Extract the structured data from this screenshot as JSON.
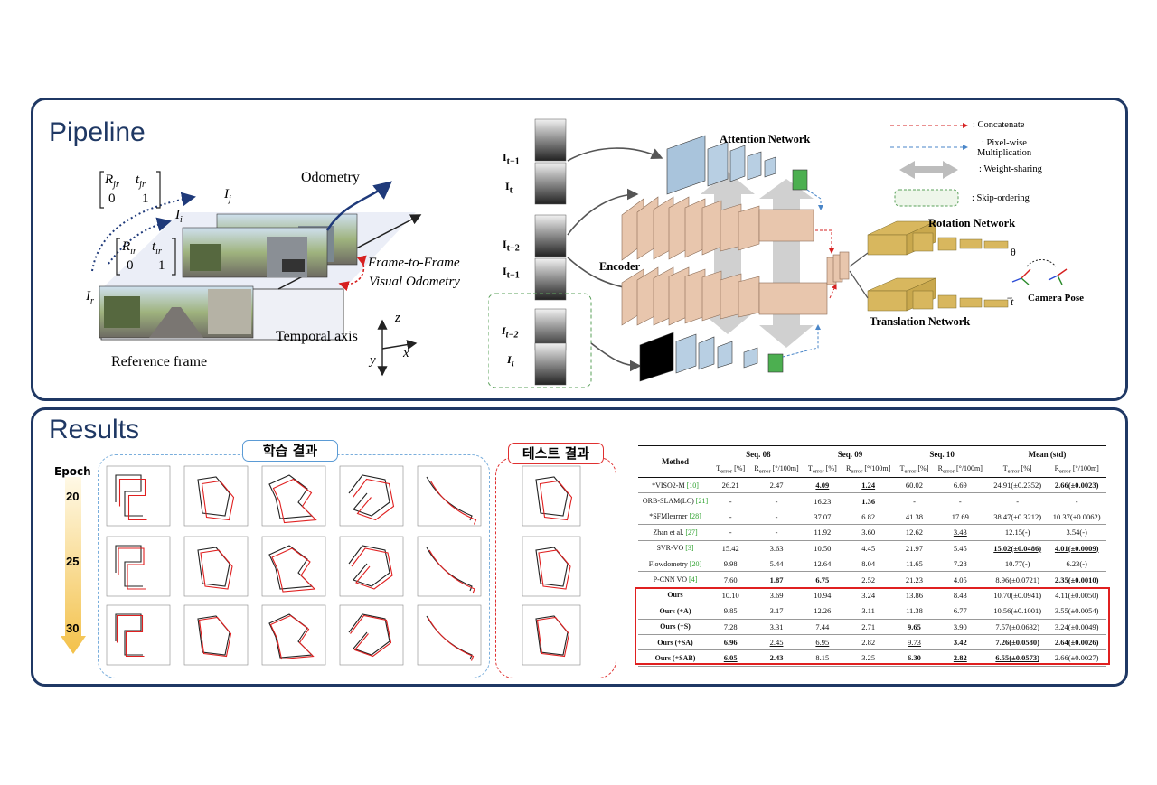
{
  "pipeline": {
    "title": "Pipeline",
    "left_diagram": {
      "matrix_top": {
        "r1c1": "R",
        "r1c1_sub": "jr",
        "r1c2": "t",
        "r1c2_sub": "jr",
        "r2c1": "0",
        "r2c2": "1"
      },
      "matrix_mid": {
        "r1c1": "R",
        "r1c1_sub": "ir",
        "r1c2": "t",
        "r1c2_sub": "ir",
        "r2c1": "0",
        "r2c2": "1"
      },
      "label_Ij": "I",
      "label_Ij_sub": "j",
      "label_Ii": "I",
      "label_Ii_sub": "i",
      "label_Ir": "I",
      "label_Ir_sub": "r",
      "odometry": "Odometry",
      "f2f_line1": "Frame-to-Frame",
      "f2f_line2": "Visual Odometry",
      "temporal_axis": "Temporal axis",
      "reference_frame": "Reference frame",
      "axis_z": "z",
      "axis_x": "x",
      "axis_y": "y"
    },
    "network": {
      "inputs": [
        {
          "label": "I",
          "sub": "t−1"
        },
        {
          "label": "I",
          "sub": "t"
        },
        {
          "label": "I",
          "sub": "t−2"
        },
        {
          "label": "I",
          "sub": "t−1"
        },
        {
          "label": "I",
          "sub": "t−2"
        },
        {
          "label": "I",
          "sub": "t"
        }
      ],
      "attention": "Attention Network",
      "encoder": "Encoder",
      "rotation": "Rotation Network",
      "translation": "Translation Network",
      "theta": "θ",
      "t_vec": "t",
      "camera_pose": "Camera Pose",
      "legend": [
        {
          "key": "concat",
          "label": ": Concatenate"
        },
        {
          "key": "pixel",
          "label": ": Pixel-wise",
          "label2": "Multiplication"
        },
        {
          "key": "weight",
          "label": ": Weight-sharing"
        },
        {
          "key": "skip",
          "label": ": Skip-ordering"
        }
      ]
    }
  },
  "results": {
    "title": "Results",
    "epoch_label": "Epoch",
    "epochs": [
      "20",
      "25",
      "30"
    ],
    "train_label": "학습 결과",
    "test_label": "테스트 결과",
    "table": {
      "method_header": "Method",
      "groups": [
        "Seq. 08",
        "Seq. 09",
        "Seq. 10",
        "Mean (std)"
      ],
      "terr": "T",
      "terr_sub": "error",
      "terr_unit": " [%]",
      "rerr": "R",
      "rerr_sub": "error",
      "rerr_unit": " [°/100m]",
      "rows": [
        {
          "method": "*VISO2-M",
          "ref": "[10]",
          "cells": [
            "26.21",
            "2.47",
            "4.09",
            "1.24",
            "60.02",
            "6.69",
            "24.91(±0.2352)",
            "2.66(±0.0023)"
          ]
        },
        {
          "method": "ORB-SLAM(LC)",
          "ref": "[21]",
          "cells": [
            "-",
            "-",
            "16.23",
            "1.36",
            "-",
            "-",
            "-",
            "-"
          ]
        },
        {
          "method": "*SFMlearner",
          "ref": "[28]",
          "cells": [
            "-",
            "-",
            "37.07",
            "6.82",
            "41.38",
            "17.69",
            "38.47(±0.3212)",
            "10.37(±0.0062)"
          ]
        },
        {
          "method": "Zhan et al.",
          "ref": "[27]",
          "cells": [
            "-",
            "-",
            "11.92",
            "3.60",
            "12.62",
            "3.43",
            "12.15(-)",
            "3.54(-)"
          ]
        },
        {
          "method": "SVR-VO",
          "ref": "[3]",
          "cells": [
            "15.42",
            "3.63",
            "10.50",
            "4.45",
            "21.97",
            "5.45",
            "15.02(±0.0486)",
            "4.01(±0.0009)"
          ]
        },
        {
          "method": "Flowdometry",
          "ref": "[20]",
          "cells": [
            "9.98",
            "5.44",
            "12.64",
            "8.04",
            "11.65",
            "7.28",
            "10.77(-)",
            "6.23(-)"
          ]
        },
        {
          "method": "P-CNN VO",
          "ref": "[4]",
          "cells": [
            "7.60",
            "1.87",
            "6.75",
            "2.52",
            "21.23",
            "4.05",
            "8.96(±0.0721)",
            "2.35(±0.0010)"
          ]
        },
        {
          "method": "Ours",
          "ref": "",
          "cells": [
            "10.10",
            "3.69",
            "10.94",
            "3.24",
            "13.86",
            "8.43",
            "10.70(±0.0941)",
            "4.11(±0.0050)"
          ]
        },
        {
          "method": "Ours (+A)",
          "ref": "",
          "cells": [
            "9.85",
            "3.17",
            "12.26",
            "3.11",
            "11.38",
            "6.77",
            "10.56(±0.1001)",
            "3.55(±0.0054)"
          ]
        },
        {
          "method": "Ours (+S)",
          "ref": "",
          "cells": [
            "7.28",
            "3.31",
            "7.44",
            "2.71",
            "9.65",
            "3.90",
            "7.57(±0.0632)",
            "3.24(±0.0049)"
          ]
        },
        {
          "method": "Ours (+SA)",
          "ref": "",
          "cells": [
            "6.96",
            "2.45",
            "6.95",
            "2.82",
            "9.73",
            "3.42",
            "7.26(±0.0580)",
            "2.64(±0.0026)"
          ]
        },
        {
          "method": "Ours (+SAB)",
          "ref": "",
          "cells": [
            "6.05",
            "2.43",
            "8.15",
            "3.25",
            "6.30",
            "2.82",
            "6.55(±0.0573)",
            "2.66(±0.0027)"
          ]
        }
      ]
    }
  }
}
